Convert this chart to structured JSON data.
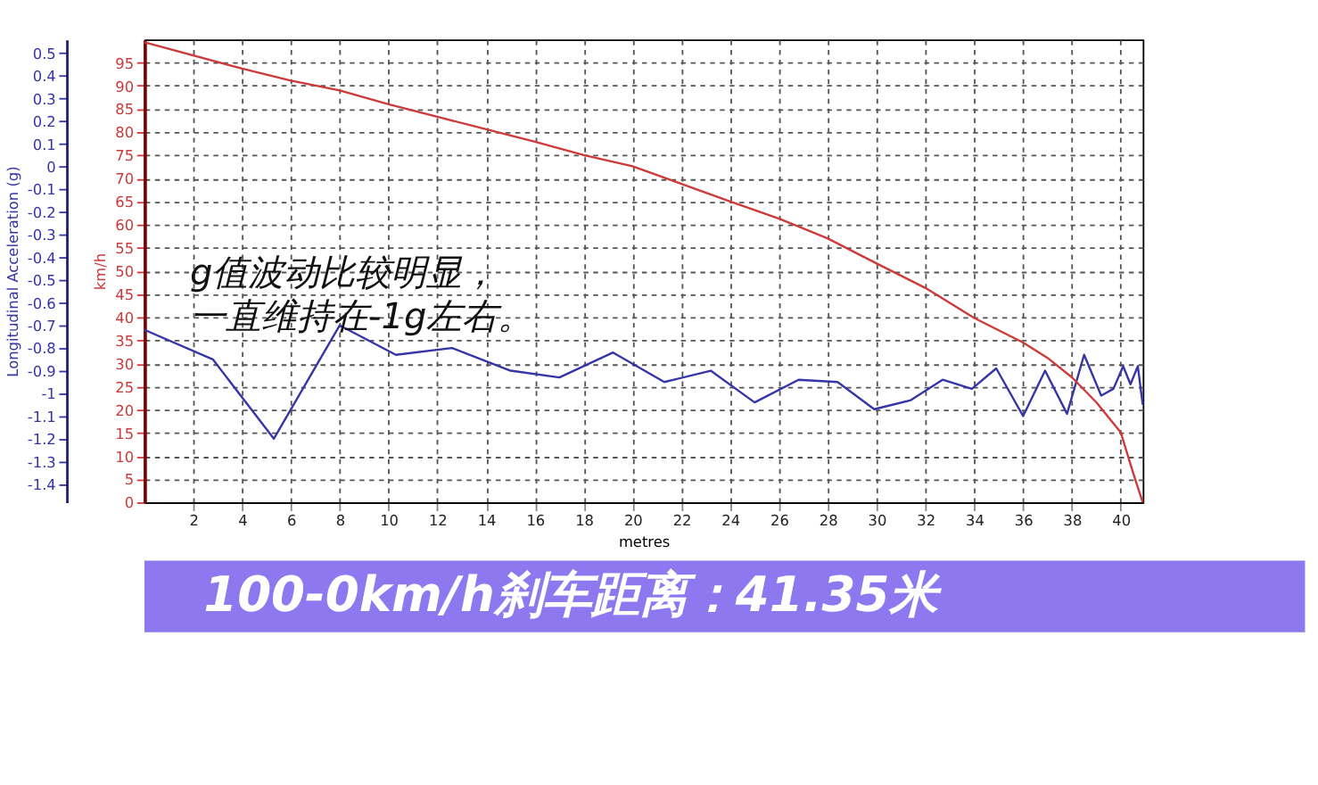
{
  "chart_data": {
    "type": "line",
    "title": "100-0km/h刹车距离：41.35米",
    "annotations": [
      "g值波动比较明显，",
      "一直维持在-1g左右。"
    ],
    "xlabel": "metres",
    "ylabel": "Longitudinal Acceleration (g)",
    "y2label": "km/h",
    "xlim": [
      0,
      40.9
    ],
    "xticks": [
      2,
      4,
      6,
      8,
      10,
      12,
      14,
      16,
      18,
      20,
      22,
      24,
      26,
      28,
      30,
      32,
      34,
      36,
      38,
      40
    ],
    "ylim": [
      -1.48,
      0.56
    ],
    "yticks": [
      0.5,
      0.4,
      0.3,
      0.2,
      0.1,
      0,
      -0.1,
      -0.2,
      -0.3,
      -0.4,
      -0.5,
      -0.6,
      -0.7,
      -0.8,
      -0.9,
      -1,
      -1.1,
      -1.2,
      -1.3,
      -1.4
    ],
    "y2lim": [
      0,
      100
    ],
    "y2ticks": [
      0,
      5,
      10,
      15,
      20,
      25,
      30,
      35,
      40,
      45,
      50,
      55,
      60,
      65,
      70,
      75,
      80,
      85,
      90,
      95
    ],
    "grid": true,
    "marker": "none",
    "line_style": "solid",
    "series": [
      {
        "color": "#3535a8",
        "x": [
          0,
          2.8,
          5.3,
          8,
          10.3,
          12.6,
          15,
          17,
          19.2,
          21.3,
          23.2,
          25,
          26.8,
          28.4,
          29.9,
          31.4,
          32.7,
          33.9,
          34.9,
          36,
          36.9,
          37.8,
          38.5,
          39.2,
          39.7,
          40.1,
          40.4,
          40.7,
          40.9
        ],
        "values": [
          -0.72,
          -0.85,
          -1.2,
          -0.7,
          -0.83,
          -0.8,
          -0.9,
          -0.93,
          -0.82,
          -0.95,
          -0.9,
          -1.04,
          -0.94,
          -0.95,
          -1.07,
          -1.03,
          -0.94,
          -0.98,
          -0.89,
          -1.1,
          -0.9,
          -1.09,
          -0.83,
          -1.01,
          -0.98,
          -0.88,
          -0.96,
          -0.88,
          -1.05
        ]
      },
      {
        "color": "#cc3a3a",
        "axis": "y2",
        "x": [
          0,
          4,
          6,
          8,
          10,
          12,
          14,
          16,
          18,
          20,
          22,
          24,
          26,
          28,
          30,
          32,
          34,
          36,
          37,
          38,
          39,
          40,
          40.5,
          40.9
        ],
        "values": [
          99.4,
          93.7,
          91.1,
          89,
          86,
          83.3,
          80.6,
          77.9,
          75,
          72.6,
          68.8,
          65,
          61.3,
          57,
          51.6,
          46.3,
          39.8,
          34.5,
          31.2,
          27,
          21.6,
          15.1,
          6.5,
          0
        ]
      }
    ]
  }
}
